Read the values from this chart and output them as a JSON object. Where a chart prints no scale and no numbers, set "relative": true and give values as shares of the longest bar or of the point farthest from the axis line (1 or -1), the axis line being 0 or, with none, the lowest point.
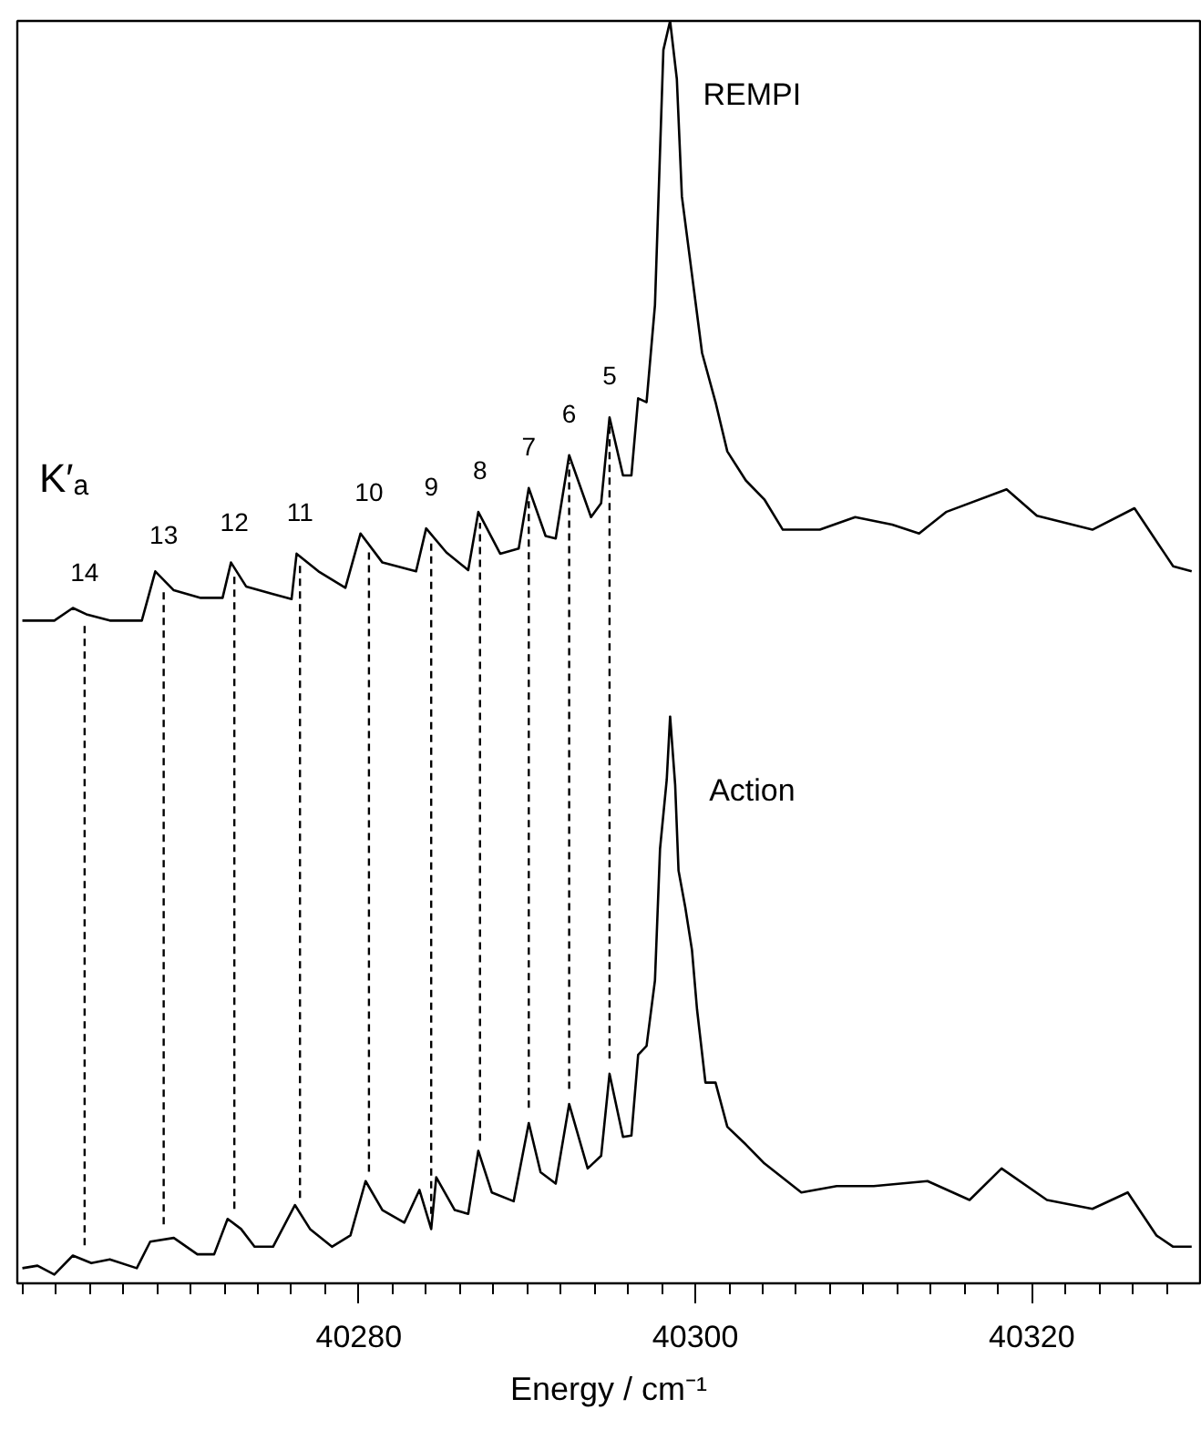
{
  "chart_data": {
    "type": "line",
    "relative": true,
    "xlabel": "Energy / cm⁻¹",
    "xlim": [
      40259.7,
      40330
    ],
    "xticks": [
      {
        "value": 40260,
        "label": null
      },
      {
        "value": 40262,
        "label": null
      },
      {
        "value": 40264,
        "label": null
      },
      {
        "value": 40266,
        "label": null
      },
      {
        "value": 40268,
        "label": null
      },
      {
        "value": 40270,
        "label": null
      },
      {
        "value": 40272,
        "label": null
      },
      {
        "value": 40274,
        "label": null
      },
      {
        "value": 40276,
        "label": null
      },
      {
        "value": 40278,
        "label": null
      },
      40280,
      {
        "value": 40282,
        "label": null
      },
      {
        "value": 40284,
        "label": null
      },
      {
        "value": 40286,
        "label": null
      },
      {
        "value": 40288,
        "label": null
      },
      {
        "value": 40290,
        "label": null
      },
      {
        "value": 40292,
        "label": null
      },
      {
        "value": 40294,
        "label": null
      },
      {
        "value": 40296,
        "label": null
      },
      {
        "value": 40298,
        "label": null
      },
      40300,
      {
        "value": 40302,
        "label": null
      },
      {
        "value": 40304,
        "label": null
      },
      {
        "value": 40306,
        "label": null
      },
      {
        "value": 40308,
        "label": null
      },
      {
        "value": 40310,
        "label": null
      },
      {
        "value": 40312,
        "label": null
      },
      {
        "value": 40314,
        "label": null
      },
      {
        "value": 40316,
        "label": null
      },
      {
        "value": 40318,
        "label": null
      },
      40320,
      {
        "value": 40322,
        "label": null
      },
      {
        "value": 40324,
        "label": null
      },
      {
        "value": 40326,
        "label": null
      },
      {
        "value": 40328,
        "label": null
      }
    ],
    "tick_labels": "x",
    "grid": false,
    "marker": "none",
    "line_style": "solid",
    "series": [
      {
        "name": "REMPI",
        "color": "#000000",
        "x": [
          40260.0,
          40261.9,
          40263.0,
          40263.8,
          40265.2,
          40267.1,
          40267.9,
          40269.0,
          40270.6,
          40271.9,
          40272.4,
          40273.3,
          40274.9,
          40276.0,
          40276.3,
          40277.6,
          40279.2,
          40280.1,
          40281.4,
          40283.4,
          40284.0,
          40285.2,
          40286.5,
          40287.1,
          40288.4,
          40289.5,
          40290.1,
          40291.1,
          40291.7,
          40292.5,
          40293.8,
          40294.4,
          40294.9,
          40295.7,
          40296.2,
          40296.6,
          40297.1,
          40297.6,
          40298.1,
          40298.5,
          40298.9,
          40299.2,
          40299.8,
          40300.4,
          40301.2,
          40301.9,
          40303.0,
          40304.1,
          40305.2,
          40307.4,
          40309.5,
          40311.7,
          40313.3,
          40314.9,
          40318.5,
          40320.3,
          40323.6,
          40326.1,
          40327.9,
          40328.4,
          40329.5
        ],
        "values": [
          0.525,
          0.525,
          0.535,
          0.53,
          0.525,
          0.525,
          0.564,
          0.549,
          0.543,
          0.543,
          0.571,
          0.552,
          0.546,
          0.542,
          0.578,
          0.564,
          0.551,
          0.594,
          0.571,
          0.564,
          0.598,
          0.579,
          0.565,
          0.611,
          0.578,
          0.582,
          0.63,
          0.592,
          0.59,
          0.656,
          0.607,
          0.618,
          0.686,
          0.64,
          0.64,
          0.701,
          0.698,
          0.775,
          0.977,
          1.0,
          0.954,
          0.861,
          0.799,
          0.737,
          0.698,
          0.659,
          0.636,
          0.621,
          0.597,
          0.597,
          0.607,
          0.601,
          0.594,
          0.611,
          0.629,
          0.608,
          0.597,
          0.614,
          0.578,
          0.568,
          0.564
        ]
      },
      {
        "name": "Action",
        "color": "#000000",
        "x": [
          40260.0,
          40260.9,
          40261.9,
          40263.0,
          40264.1,
          40265.2,
          40266.8,
          40267.6,
          40269.0,
          40270.4,
          40271.4,
          40272.2,
          40273.0,
          40273.8,
          40274.9,
          40276.2,
          40277.1,
          40278.4,
          40279.5,
          40280.4,
          40281.4,
          40282.7,
          40283.6,
          40284.3,
          40284.6,
          40285.7,
          40286.5,
          40287.1,
          40287.9,
          40289.2,
          40290.1,
          40290.8,
          40291.7,
          40292.5,
          40293.6,
          40294.4,
          40294.9,
          40295.7,
          40296.2,
          40296.6,
          40297.1,
          40297.6,
          40297.9,
          40298.3,
          40298.5,
          40298.8,
          40299.0,
          40299.4,
          40299.8,
          40300.1,
          40300.6,
          40301.2,
          40301.9,
          40303.0,
          40304.1,
          40306.3,
          40308.4,
          40310.6,
          40313.8,
          40316.3,
          40318.2,
          40320.9,
          40323.6,
          40325.7,
          40327.4,
          40328.4,
          40329.5
        ],
        "values": [
          0.012,
          0.014,
          0.007,
          0.022,
          0.016,
          0.019,
          0.012,
          0.033,
          0.036,
          0.023,
          0.023,
          0.051,
          0.043,
          0.029,
          0.029,
          0.062,
          0.043,
          0.029,
          0.038,
          0.081,
          0.058,
          0.048,
          0.074,
          0.043,
          0.084,
          0.058,
          0.055,
          0.105,
          0.072,
          0.065,
          0.127,
          0.088,
          0.079,
          0.142,
          0.091,
          0.101,
          0.166,
          0.116,
          0.117,
          0.181,
          0.188,
          0.24,
          0.344,
          0.399,
          0.449,
          0.395,
          0.327,
          0.298,
          0.264,
          0.217,
          0.159,
          0.159,
          0.124,
          0.11,
          0.095,
          0.072,
          0.077,
          0.077,
          0.081,
          0.066,
          0.091,
          0.066,
          0.059,
          0.072,
          0.038,
          0.029,
          0.029
        ]
      }
    ],
    "ref_lines": [
      {
        "axis": "x",
        "value": 40263.7,
        "line_style": "dashed"
      },
      {
        "axis": "x",
        "value": 40268.4,
        "line_style": "dashed"
      },
      {
        "axis": "x",
        "value": 40272.6,
        "line_style": "dashed"
      },
      {
        "axis": "x",
        "value": 40276.5,
        "line_style": "dashed"
      },
      {
        "axis": "x",
        "value": 40280.6,
        "line_style": "dashed"
      },
      {
        "axis": "x",
        "value": 40284.3,
        "line_style": "dashed"
      },
      {
        "axis": "x",
        "value": 40287.2,
        "line_style": "dashed"
      },
      {
        "axis": "x",
        "value": 40290.1,
        "line_style": "dashed"
      },
      {
        "axis": "x",
        "value": 40292.5,
        "line_style": "dashed"
      },
      {
        "axis": "x",
        "value": 40294.9,
        "line_style": "dashed"
      }
    ],
    "annotations": [
      "K′ₐ",
      {
        "text": "14",
        "x": 40263.7,
        "y": 0.53
      },
      {
        "text": "13",
        "x": 40268.4,
        "y": 0.56
      },
      {
        "text": "12",
        "x": 40272.6,
        "y": 0.57
      },
      {
        "text": "11",
        "x": 40276.5,
        "y": 0.578
      },
      {
        "text": "10",
        "x": 40280.6,
        "y": 0.594
      },
      {
        "text": "9",
        "x": 40284.3,
        "y": 0.598
      },
      {
        "text": "8",
        "x": 40287.2,
        "y": 0.611
      },
      {
        "text": "7",
        "x": 40290.1,
        "y": 0.63
      },
      {
        "text": "6",
        "x": 40292.5,
        "y": 0.656
      },
      {
        "text": "5",
        "x": 40294.9,
        "y": 0.686
      }
    ]
  }
}
